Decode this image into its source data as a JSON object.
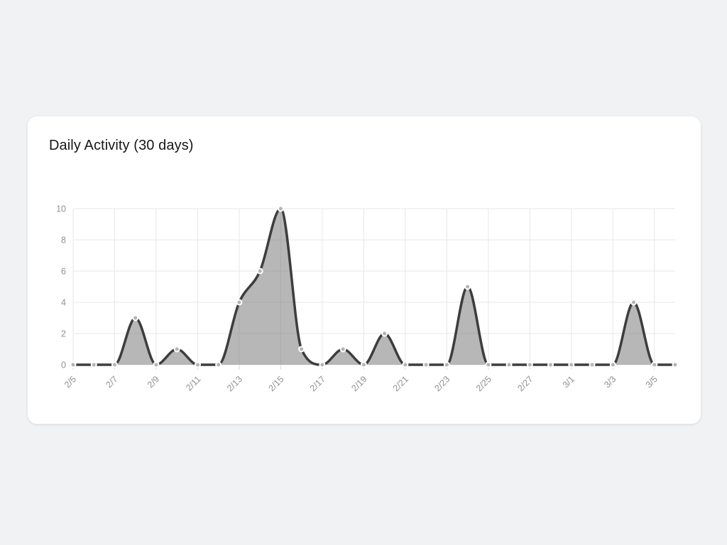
{
  "page": {
    "background": "#f1f2f4"
  },
  "card": {
    "background": "#ffffff",
    "border_color": "#e9ebee"
  },
  "chart_data": {
    "type": "area",
    "title": "Daily Activity (30 days)",
    "x": [
      "2/5",
      "2/6",
      "2/7",
      "2/8",
      "2/9",
      "2/10",
      "2/11",
      "2/12",
      "2/13",
      "2/14",
      "2/15",
      "2/16",
      "2/17",
      "2/18",
      "2/19",
      "2/20",
      "2/21",
      "2/22",
      "2/23",
      "2/24",
      "2/25",
      "2/26",
      "2/27",
      "2/28",
      "3/1",
      "3/2",
      "3/3",
      "3/4",
      "3/5",
      "3/6"
    ],
    "values": [
      0,
      0,
      0,
      3,
      0,
      1,
      0,
      0,
      4,
      6,
      10,
      1,
      0,
      1,
      0,
      2,
      0,
      0,
      0,
      5,
      0,
      0,
      0,
      0,
      0,
      0,
      0,
      4,
      0,
      0
    ],
    "x_tick_labels": [
      "2/5",
      "2/7",
      "2/9",
      "2/11",
      "2/13",
      "2/15",
      "2/17",
      "2/19",
      "2/21",
      "2/23",
      "2/25",
      "2/27",
      "3/1",
      "3/3",
      "3/5"
    ],
    "x_tick_every": 2,
    "y_ticks": [
      0,
      2,
      4,
      6,
      8,
      10
    ],
    "ylim": [
      0,
      10
    ],
    "xlabel": "",
    "ylabel": "",
    "grid": true,
    "legend": false,
    "smoothing": "monotone",
    "colors": {
      "line": "#3d3d3d",
      "fill": "rgba(112,112,112,0.5)",
      "marker": "#b3b3b3",
      "marker_border": "#ffffff",
      "grid": "#e6e7e9",
      "axis_tick": "#d8dadd",
      "tick_text": "#8f9093",
      "title_text": "#15171a"
    }
  }
}
